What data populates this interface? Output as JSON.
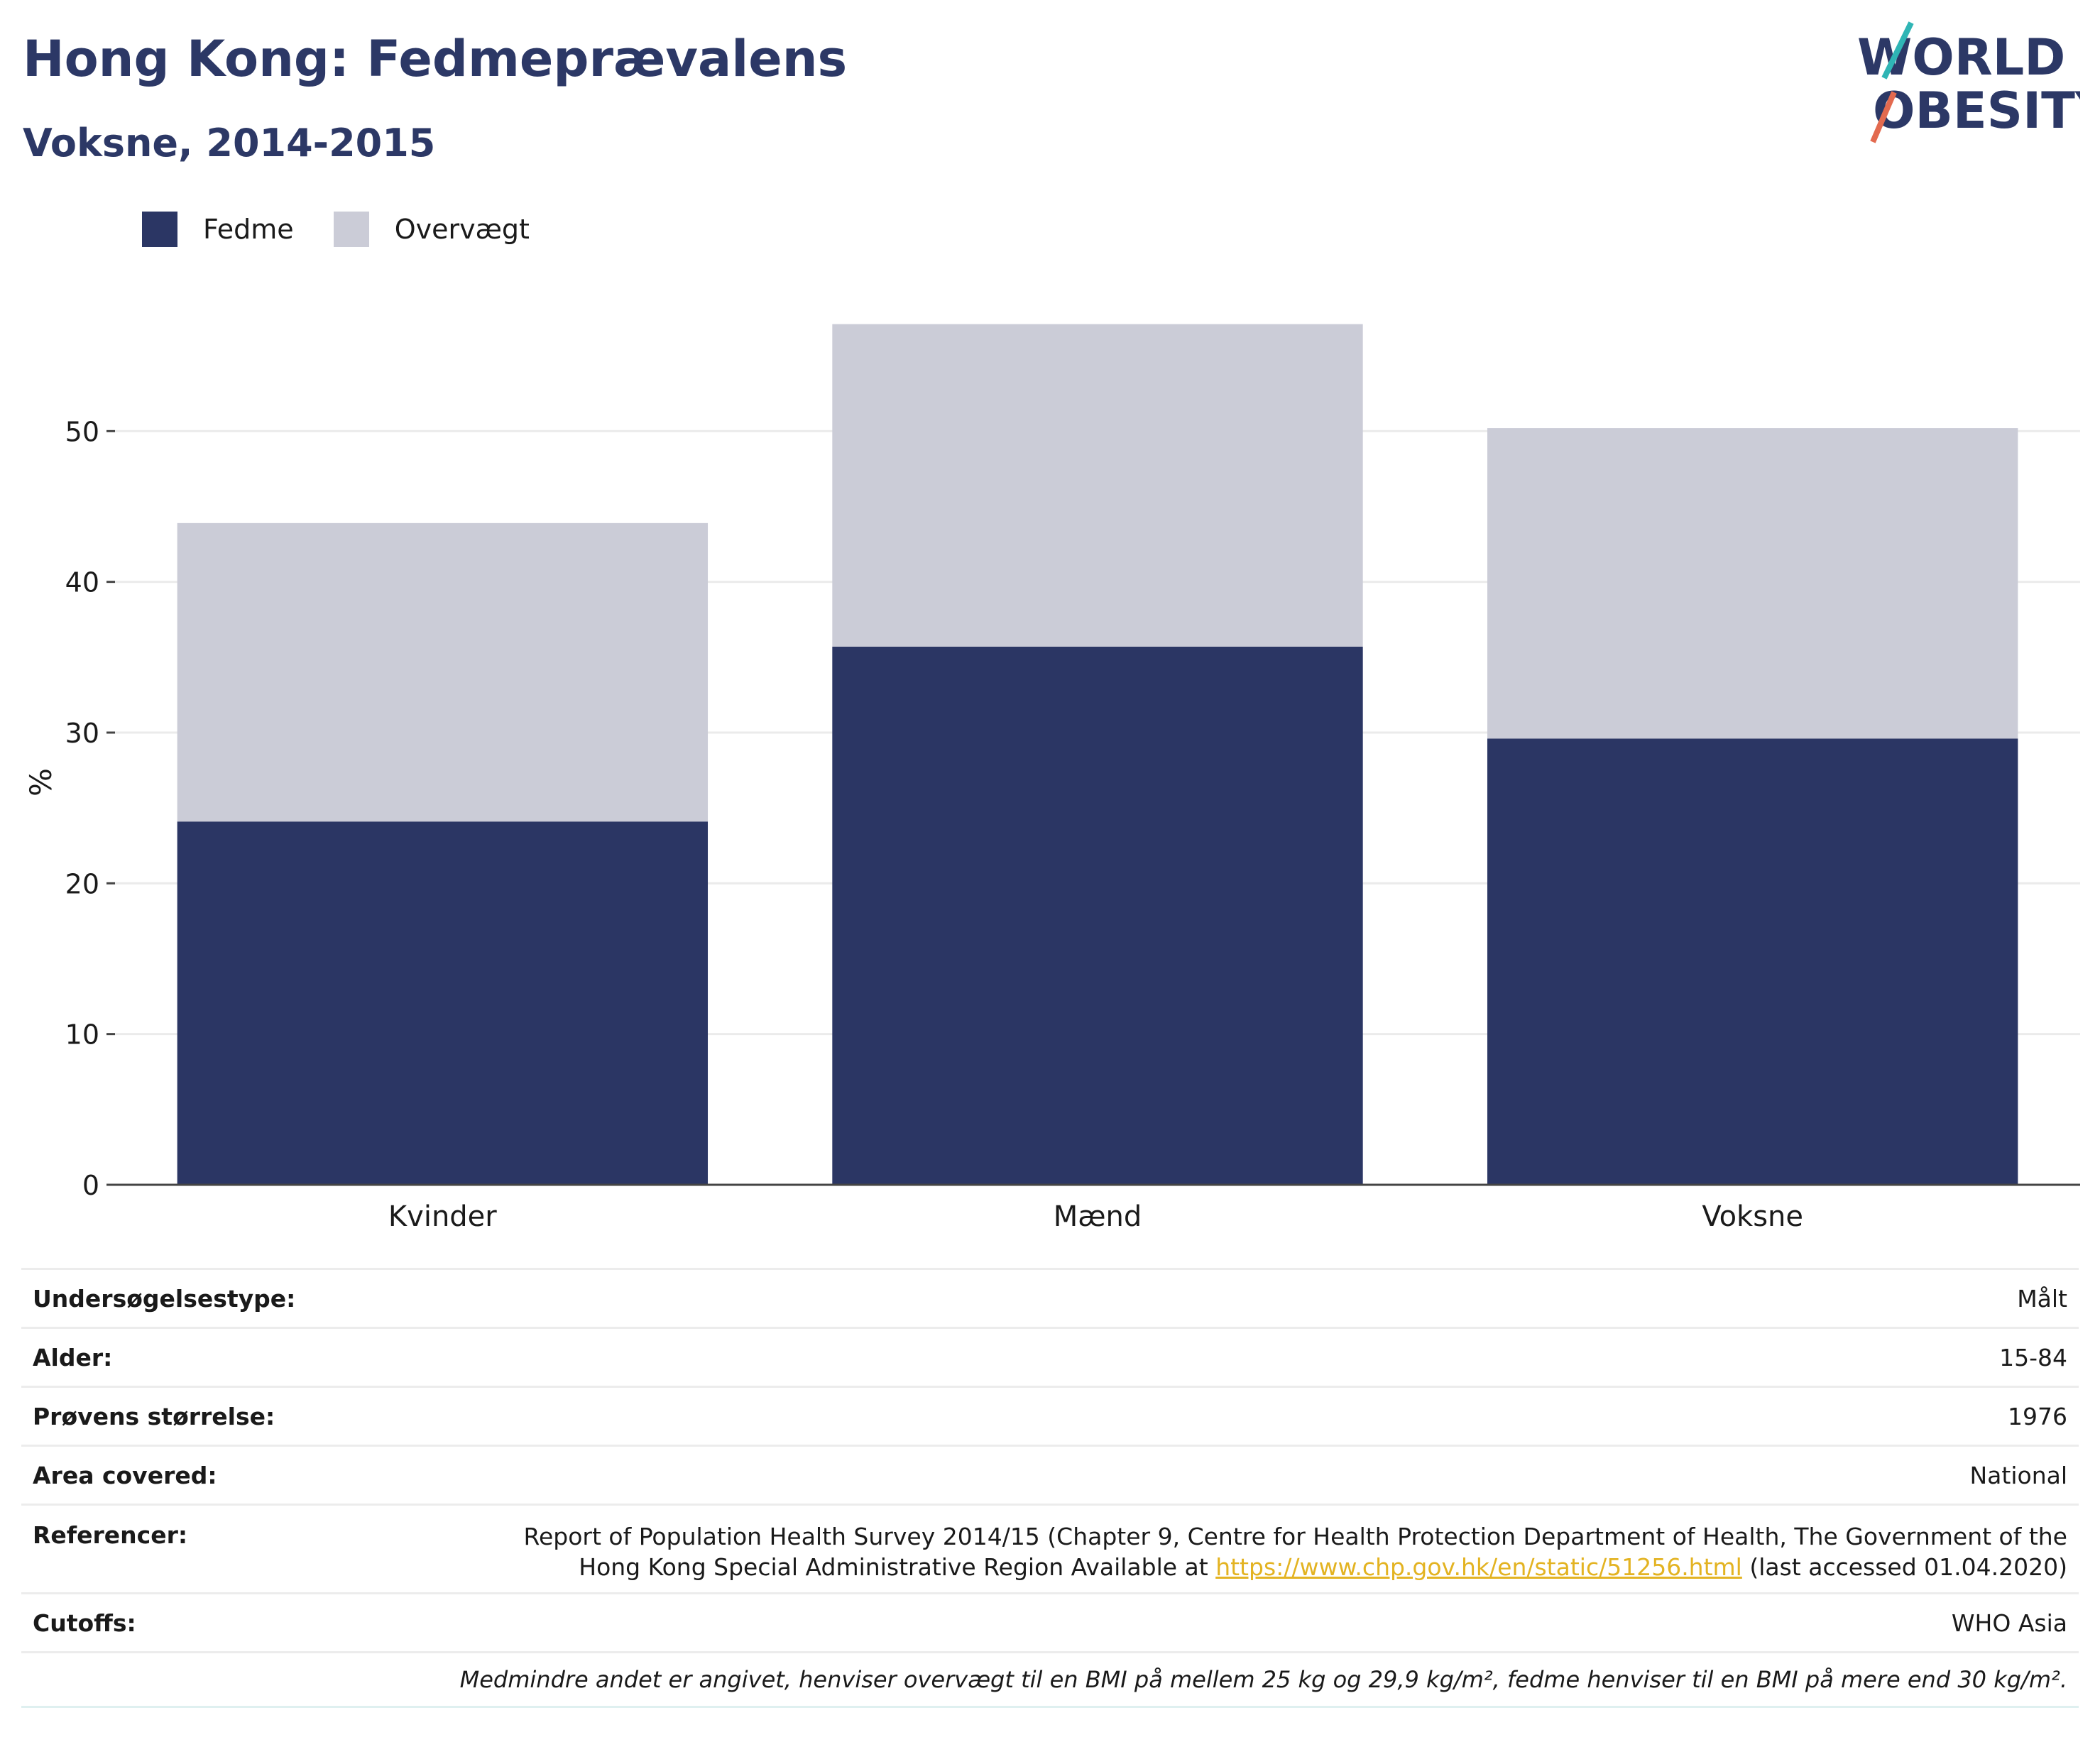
{
  "header": {
    "title": "Hong Kong: Fedmeprævalens",
    "subtitle": "Voksne, 2014-2015"
  },
  "logo": {
    "line1": "WORLD",
    "line2": "OBESITY"
  },
  "legend": [
    {
      "label": "Fedme",
      "color": "#2b3664"
    },
    {
      "label": "Overvægt",
      "color": "#cbccd7"
    }
  ],
  "chart_data": {
    "type": "bar",
    "stacked": true,
    "categories": [
      "Kvinder",
      "Mænd",
      "Voksne"
    ],
    "series": [
      {
        "name": "Fedme",
        "values": [
          24.1,
          35.7,
          29.6
        ],
        "color": "#2b3664"
      },
      {
        "name": "Overvægt",
        "values": [
          19.8,
          21.4,
          20.6
        ],
        "color": "#cbccd7"
      }
    ],
    "ylabel": "%",
    "xlabel": "",
    "ylim": [
      0,
      60
    ],
    "yticks": [
      0,
      10,
      20,
      30,
      40,
      50
    ],
    "grid": true,
    "legend_position": "top-left"
  },
  "info": {
    "survey_type": {
      "label": "Undersøgelsestype:",
      "value": "Målt"
    },
    "age": {
      "label": "Alder:",
      "value": "15-84"
    },
    "sample_size": {
      "label": "Prøvens størrelse:",
      "value": "1976"
    },
    "area": {
      "label": "Area covered:",
      "value": "National"
    },
    "references": {
      "label": "Referencer:",
      "line1": "Report of Population Health Survey 2014/15 (Chapter 9, Centre for Health Protection Department of Health, The Government of the",
      "line2_prefix": "Hong Kong Special Administrative Region Available at ",
      "link": "https://www.chp.gov.hk/en/static/51256.html",
      "line2_suffix": " (last accessed 01.04.2020)"
    },
    "cutoffs": {
      "label": "Cutoffs:",
      "value": "WHO Asia"
    },
    "note": "Medmindre andet er angivet, henviser overvægt til en BMI på mellem 25 kg og 29,9 kg/m², fedme henviser til en BMI på mere end 30 kg/m²."
  }
}
